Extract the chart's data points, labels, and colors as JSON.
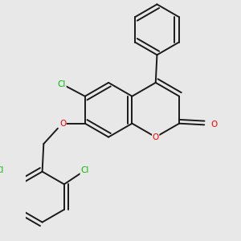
{
  "bg_color": "#e8e8e8",
  "bond_color": "#1a1a1a",
  "bond_width": 1.4,
  "dbo": 0.018,
  "atom_colors": {
    "O": "#ff0000",
    "Cl": "#00bb00"
  },
  "fs": 7.5
}
